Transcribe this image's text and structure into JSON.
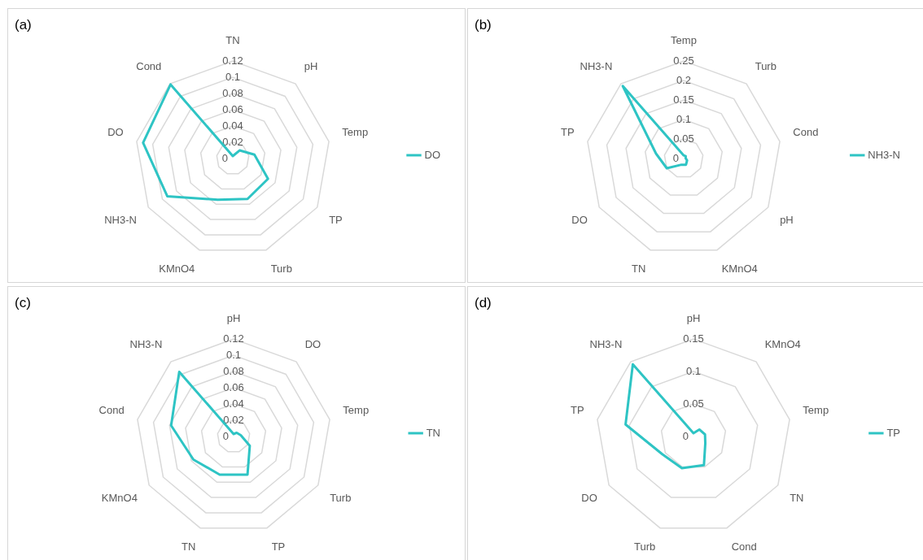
{
  "chart_data": [
    {
      "type": "radar",
      "title": "(a)",
      "categories": [
        "TN",
        "pH",
        "Temp",
        "TP",
        "Turb",
        "KMnO4",
        "NH3-N",
        "DO",
        "Cond"
      ],
      "series": [
        {
          "name": "DO",
          "color": "#2ec4c4",
          "values": [
            0.003,
            0.013,
            0.027,
            0.05,
            0.053,
            0.054,
            0.093,
            0.112,
            0.119
          ]
        }
      ],
      "ylim": [
        0,
        0.12
      ],
      "yticks": [
        0,
        0.02,
        0.04,
        0.06,
        0.08,
        0.1,
        0.12
      ],
      "grid": true,
      "legend": "right",
      "marker": "none"
    },
    {
      "type": "radar",
      "title": "(b)",
      "categories": [
        "Temp",
        "Turb",
        "Cond",
        "pH",
        "KMnO4",
        "TN",
        "DO",
        "TP",
        "NH3-N"
      ],
      "series": [
        {
          "name": "NH3-N",
          "color": "#2ec4c4",
          "values": [
            0.008,
            0.008,
            0.005,
            0.01,
            0.017,
            0.017,
            0.05,
            0.072,
            0.243
          ]
        }
      ],
      "ylim": [
        0,
        0.25
      ],
      "yticks": [
        0,
        0.05,
        0.1,
        0.15,
        0.2,
        0.25
      ],
      "grid": true,
      "legend": "right",
      "marker": "none"
    },
    {
      "type": "radar",
      "title": "(c)",
      "categories": [
        "pH",
        "DO",
        "Temp",
        "Turb",
        "TP",
        "TN",
        "KMnO4",
        "Cond",
        "NH3-N"
      ],
      "series": [
        {
          "name": "TN",
          "color": "#2ec4c4",
          "values": [
            0.003,
            0.006,
            0.009,
            0.023,
            0.05,
            0.05,
            0.057,
            0.078,
            0.104
          ]
        }
      ],
      "ylim": [
        0,
        0.12
      ],
      "yticks": [
        0,
        0.02,
        0.04,
        0.06,
        0.08,
        0.1,
        0.12
      ],
      "grid": true,
      "legend": "right",
      "marker": "none"
    },
    {
      "type": "radar",
      "title": "(d)",
      "categories": [
        "pH",
        "KMnO4",
        "Temp",
        "TN",
        "Cond",
        "Turb",
        "DO",
        "TP",
        "NH3-N"
      ],
      "series": [
        {
          "name": "TP",
          "color": "#2ec4c4",
          "values": [
            0.005,
            0.014,
            0.018,
            0.021,
            0.047,
            0.052,
            0.055,
            0.106,
            0.145
          ]
        }
      ],
      "ylim": [
        0,
        0.15
      ],
      "yticks": [
        0,
        0.05,
        0.1,
        0.15
      ],
      "grid": true,
      "legend": "right",
      "marker": "none"
    }
  ]
}
